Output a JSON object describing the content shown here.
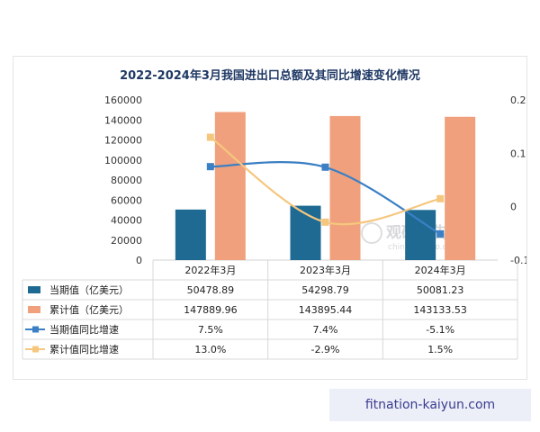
{
  "chart_data": {
    "type": "bar",
    "title": "2022-2024年3月我国进出口总额及其同比增速变化情况",
    "categories": [
      "2022年3月",
      "2023年3月",
      "2024年3月"
    ],
    "series": [
      {
        "name": "当期值（亿美元）",
        "kind": "bar",
        "axis": "left",
        "color": "#1e6a93",
        "values": [
          50478.89,
          54298.79,
          50081.23
        ],
        "labels": [
          "50478.89",
          "54298.79",
          "50081.23"
        ]
      },
      {
        "name": "累计值（亿美元）",
        "kind": "bar",
        "axis": "left",
        "color": "#f0a07c",
        "values": [
          147889.96,
          143895.44,
          143133.53
        ],
        "labels": [
          "147889.96",
          "143895.44",
          "143133.53"
        ]
      },
      {
        "name": "当期值同比增速",
        "kind": "line",
        "axis": "right",
        "color": "#3b7fc4",
        "values": [
          0.075,
          0.074,
          -0.051
        ],
        "labels": [
          "7.5%",
          "7.4%",
          "-5.1%"
        ]
      },
      {
        "name": "累计值同比增速",
        "kind": "line",
        "axis": "right",
        "color": "#f5c77e",
        "values": [
          0.13,
          -0.029,
          0.015
        ],
        "labels": [
          "13.0%",
          "-2.9%",
          "1.5%"
        ]
      }
    ],
    "y_left": {
      "min": 0,
      "max": 160000,
      "ticks": [
        "0",
        "20000",
        "40000",
        "60000",
        "80000",
        "100000",
        "120000",
        "140000",
        "160000"
      ]
    },
    "y_right": {
      "min": -0.1,
      "max": 0.2,
      "ticks": [
        "-0.1",
        "0",
        "0.1",
        "0.2"
      ]
    },
    "grid": false,
    "legend": "data-table"
  },
  "watermark": {
    "brand": "观研报告网",
    "url": "chinabaogao.com"
  },
  "footer_text": "fitnation-kaiyun.com"
}
